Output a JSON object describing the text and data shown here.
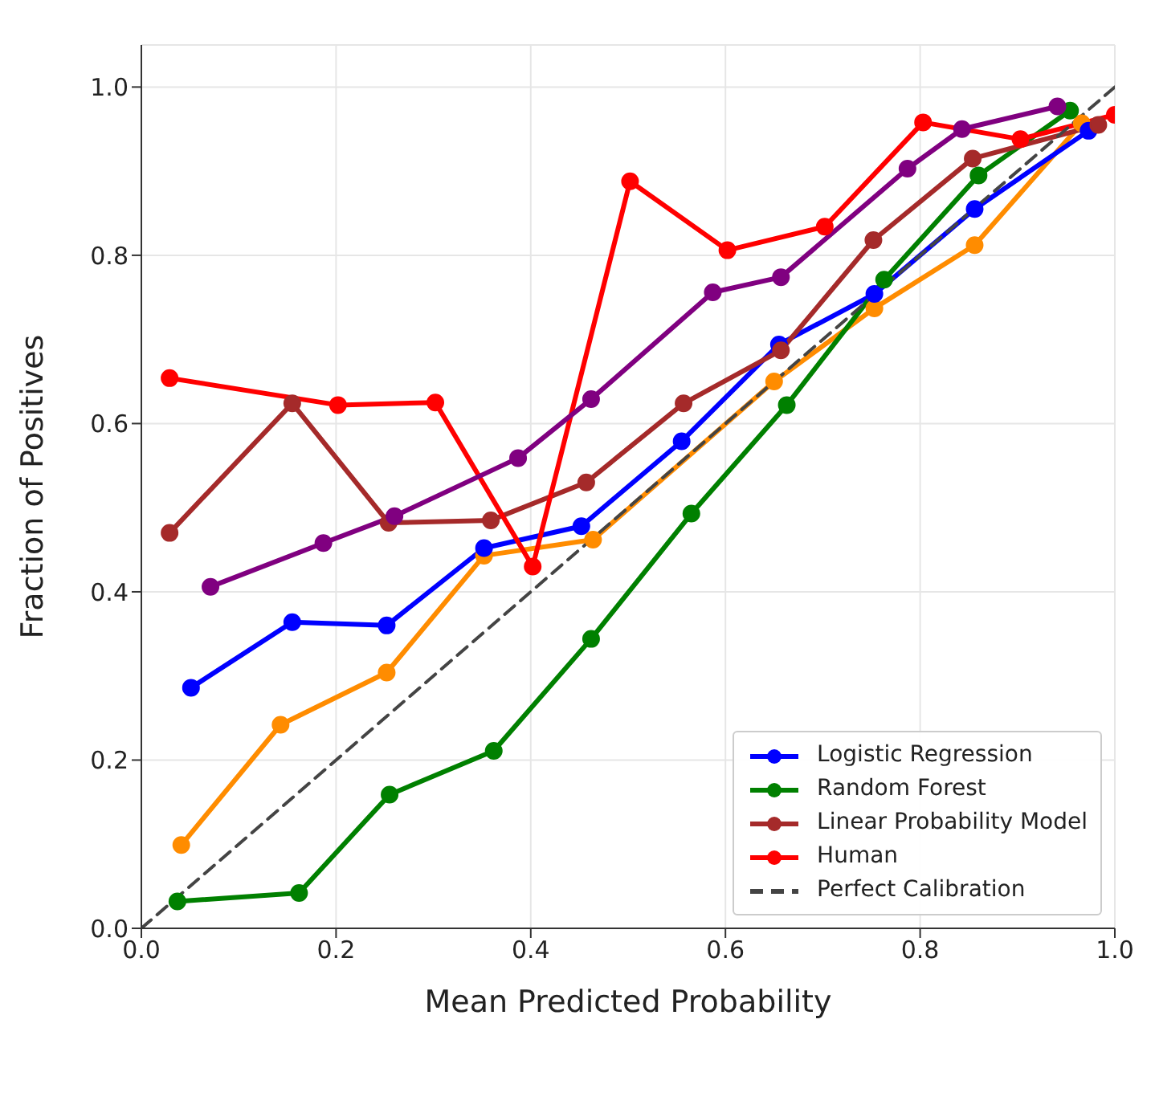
{
  "chart_data": {
    "type": "line",
    "xlabel": "Mean Predicted Probability",
    "ylabel": "Fraction of Positives",
    "xlim": [
      0,
      1
    ],
    "ylim": [
      0,
      1.05
    ],
    "xticks": [
      {
        "value": 0,
        "label": "0.0"
      },
      {
        "value": 0.2,
        "label": "0.2"
      },
      {
        "value": 0.4,
        "label": "0.4"
      },
      {
        "value": 0.6,
        "label": "0.6"
      },
      {
        "value": 0.8,
        "label": "0.8"
      },
      {
        "value": 1,
        "label": "1.0"
      }
    ],
    "yticks": [
      {
        "value": 0,
        "label": "0.0"
      },
      {
        "value": 0.2,
        "label": "0.2"
      },
      {
        "value": 0.4,
        "label": "0.4"
      },
      {
        "value": 0.6,
        "label": "0.6"
      },
      {
        "value": 0.8,
        "label": "0.8"
      },
      {
        "value": 1,
        "label": "1.0"
      }
    ],
    "grid": true,
    "legend": "bottom right",
    "marker": "circle",
    "line_style": "solid",
    "series": [
      {
        "color": "#ff8c00",
        "x": [
          0.041,
          0.143,
          0.252,
          0.352,
          0.464,
          0.65,
          0.753,
          0.856,
          0.966
        ],
        "values": [
          0.099,
          0.242,
          0.304,
          0.443,
          0.462,
          0.65,
          0.737,
          0.812,
          0.957
        ]
      },
      {
        "name": "Logistic Regression",
        "color": "#0000ff",
        "x": [
          0.051,
          0.155,
          0.252,
          0.352,
          0.452,
          0.555,
          0.655,
          0.753,
          0.856,
          0.973
        ],
        "values": [
          0.286,
          0.364,
          0.36,
          0.452,
          0.478,
          0.579,
          0.694,
          0.754,
          0.855,
          0.948
        ]
      },
      {
        "name": "Random Forest",
        "color": "#008000",
        "x": [
          0.037,
          0.162,
          0.255,
          0.362,
          0.462,
          0.565,
          0.663,
          0.763,
          0.86,
          0.954
        ],
        "values": [
          0.032,
          0.042,
          0.159,
          0.211,
          0.344,
          0.493,
          0.622,
          0.771,
          0.895,
          0.972
        ]
      },
      {
        "name": "Linear Probability Model",
        "color": "#a52a2a",
        "x": [
          0.029,
          0.155,
          0.254,
          0.359,
          0.457,
          0.557,
          0.657,
          0.752,
          0.854,
          0.983
        ],
        "values": [
          0.47,
          0.624,
          0.482,
          0.485,
          0.53,
          0.624,
          0.687,
          0.818,
          0.915,
          0.955
        ]
      },
      {
        "name": "Human",
        "color": "#ff0000",
        "x": [
          0.029,
          0.202,
          0.302,
          0.402,
          0.502,
          0.602,
          0.702,
          0.803,
          0.903,
          1.0
        ],
        "values": [
          0.654,
          0.622,
          0.625,
          0.43,
          0.888,
          0.806,
          0.834,
          0.958,
          0.938,
          0.967
        ]
      },
      {
        "color": "#800080",
        "x": [
          0.071,
          0.187,
          0.26,
          0.387,
          0.462,
          0.587,
          0.657,
          0.787,
          0.843,
          0.941
        ],
        "values": [
          0.406,
          0.458,
          0.49,
          0.559,
          0.629,
          0.756,
          0.774,
          0.903,
          0.95,
          0.977
        ]
      },
      {
        "name": "Perfect Calibration",
        "color": "#444444",
        "x": [
          0,
          1
        ],
        "values": [
          0,
          1
        ],
        "marker": "none",
        "line_style": "dashed"
      }
    ]
  }
}
